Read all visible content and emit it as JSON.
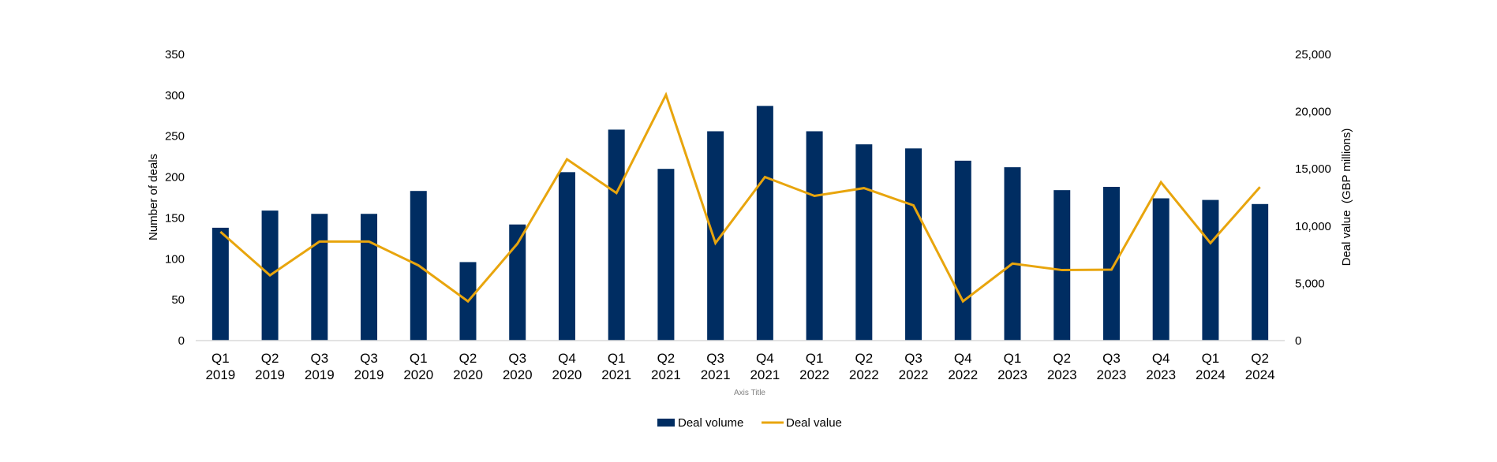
{
  "chart_data": {
    "type": "bar+line",
    "title": "",
    "categories": [
      [
        "Q1",
        "2019"
      ],
      [
        "Q2",
        "2019"
      ],
      [
        "Q3",
        "2019"
      ],
      [
        "Q3",
        "2019"
      ],
      [
        "Q1",
        "2020"
      ],
      [
        "Q2",
        "2020"
      ],
      [
        "Q3",
        "2020"
      ],
      [
        "Q4",
        "2020"
      ],
      [
        "Q1",
        "2021"
      ],
      [
        "Q2",
        "2021"
      ],
      [
        "Q3",
        "2021"
      ],
      [
        "Q4",
        "2021"
      ],
      [
        "Q1",
        "2022"
      ],
      [
        "Q2",
        "2022"
      ],
      [
        "Q3",
        "2022"
      ],
      [
        "Q4",
        "2022"
      ],
      [
        "Q1",
        "2023"
      ],
      [
        "Q2",
        "2023"
      ],
      [
        "Q3",
        "2023"
      ],
      [
        "Q4",
        "2023"
      ],
      [
        "Q1",
        "2024"
      ],
      [
        "Q2",
        "2024"
      ]
    ],
    "series": [
      {
        "name": "Deal volume",
        "type": "bar",
        "axis": "left",
        "color": "#002d62",
        "values": [
          138,
          159,
          155,
          155,
          183,
          96,
          142,
          206,
          258,
          210,
          256,
          287,
          256,
          240,
          235,
          220,
          212,
          184,
          188,
          174,
          172,
          167
        ]
      },
      {
        "name": "Deal value",
        "type": "line",
        "axis": "right",
        "color": "#e8a50d",
        "values": [
          9500,
          5700,
          8650,
          8650,
          6570,
          3430,
          8470,
          15840,
          12890,
          21470,
          8520,
          14290,
          12640,
          13320,
          11810,
          3430,
          6730,
          6160,
          6200,
          13830,
          8520,
          13410
        ]
      }
    ],
    "xlabel": "Axis Title",
    "ylabel": "Number of deals",
    "ylabel_right": "Deal value  (GBP millions)",
    "ylim": [
      0,
      350
    ],
    "ylim_right": [
      0,
      25000
    ],
    "yticks": [
      "0",
      "50",
      "100",
      "150",
      "200",
      "250",
      "300",
      "350"
    ],
    "yticks_right": [
      "0",
      "5,000",
      "10,000",
      "15,000",
      "20,000",
      "25,000"
    ],
    "grid": false,
    "legend_position": "bottom"
  }
}
